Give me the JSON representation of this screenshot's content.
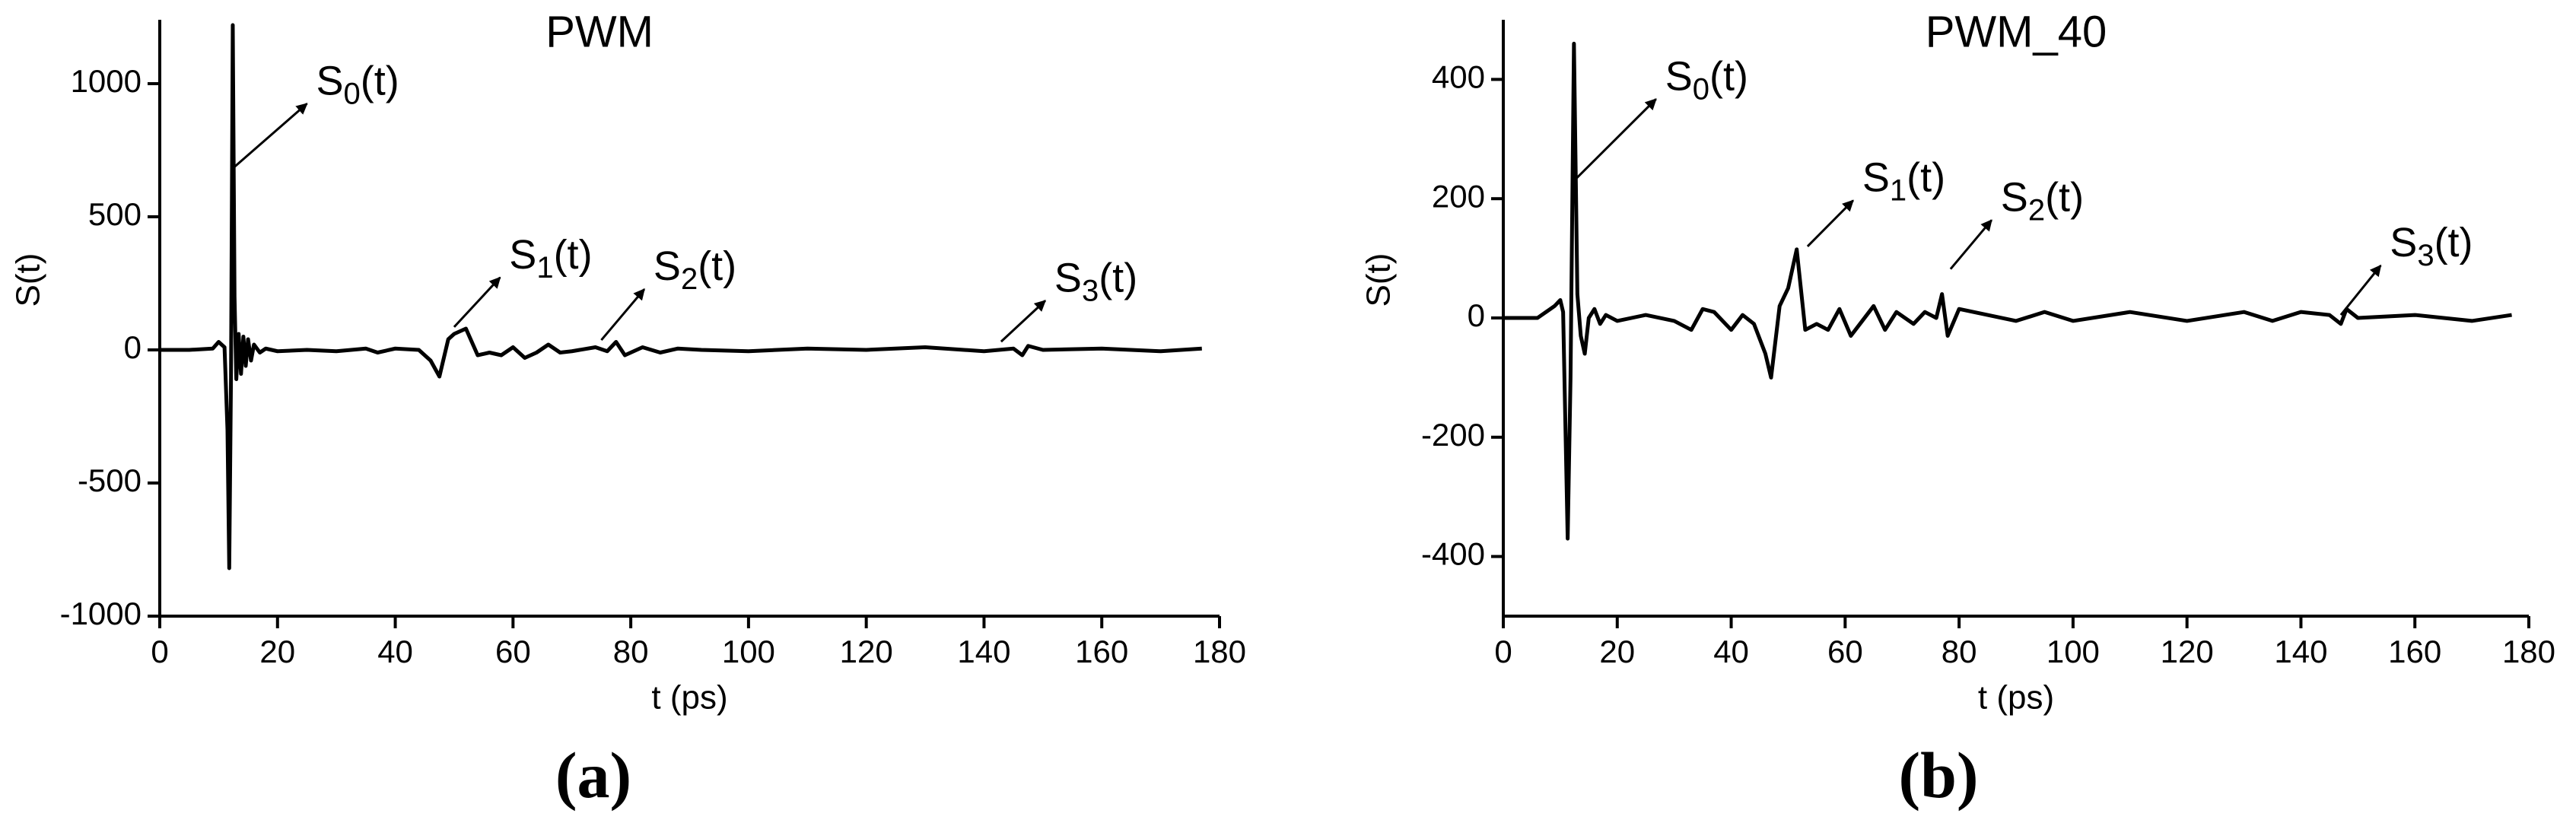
{
  "chart_data": [
    {
      "type": "line",
      "title": "PWM",
      "panel_label": "(a)",
      "xlabel": "t (ps)",
      "ylabel": "S(t)",
      "xlim": [
        0,
        180
      ],
      "xticks": [
        0,
        20,
        40,
        60,
        80,
        100,
        120,
        140,
        160,
        180
      ],
      "ylim": [
        -1000,
        1240
      ],
      "yticks": [
        -1000,
        -500,
        0,
        500,
        1000
      ],
      "x": [
        0,
        5,
        9,
        10,
        11,
        11.5,
        11.8,
        12.1,
        12.4,
        12.7,
        13,
        13.4,
        13.8,
        14.2,
        14.6,
        15,
        15.5,
        16,
        17,
        18,
        20,
        25,
        30,
        35,
        37,
        40,
        44,
        46,
        47.5,
        49,
        50,
        52,
        54,
        56,
        58,
        60,
        62,
        64,
        66,
        68,
        70,
        74,
        76,
        77.5,
        79,
        82,
        85,
        88,
        92,
        100,
        110,
        120,
        130,
        140,
        145,
        146.5,
        147.5,
        150,
        160,
        170,
        177
      ],
      "series": [
        {
          "color": "#000000",
          "values": [
            0,
            0,
            5,
            30,
            10,
            -300,
            -820,
            -100,
            1220,
            200,
            -110,
            60,
            -90,
            50,
            -60,
            40,
            -40,
            20,
            -10,
            5,
            -5,
            0,
            -5,
            5,
            -10,
            5,
            0,
            -40,
            -100,
            40,
            60,
            80,
            -20,
            -10,
            -20,
            10,
            -30,
            -10,
            20,
            -10,
            -5,
            10,
            -5,
            30,
            -20,
            10,
            -10,
            5,
            0,
            -5,
            5,
            0,
            10,
            -5,
            5,
            -20,
            15,
            0,
            5,
            -5,
            5
          ]
        }
      ],
      "annotations": [
        {
          "base": "S",
          "sub": "0",
          "suffix": "(t)",
          "xy": [
            12.3,
            680
          ],
          "xytext": [
            25,
            925
          ]
        },
        {
          "base": "S",
          "sub": "1",
          "suffix": "(t)",
          "xy": [
            50,
            86
          ],
          "xytext": [
            57.8,
            272
          ]
        },
        {
          "base": "S",
          "sub": "2",
          "suffix": "(t)",
          "xy": [
            75,
            37
          ],
          "xytext": [
            82.3,
            228
          ]
        },
        {
          "base": "S",
          "sub": "3",
          "suffix": "(t)",
          "xy": [
            142.9,
            31
          ],
          "xytext": [
            150.4,
            185
          ]
        }
      ]
    },
    {
      "type": "line",
      "title": "PWM_40",
      "panel_label": "(b)",
      "xlabel": "t (ps)",
      "ylabel": "S(t)",
      "xlim": [
        0,
        180
      ],
      "xticks": [
        0,
        20,
        40,
        60,
        80,
        100,
        120,
        140,
        160,
        180
      ],
      "ylim": [
        -500,
        500
      ],
      "yticks": [
        -400,
        -200,
        0,
        200,
        400
      ],
      "x": [
        0,
        6,
        9,
        10,
        10.5,
        11.3,
        11.8,
        12.4,
        13,
        13.6,
        14.3,
        15,
        16,
        17,
        18,
        20,
        25,
        30,
        33,
        35,
        37,
        40,
        42,
        44,
        46,
        47,
        48.5,
        50,
        51.5,
        53,
        55,
        57,
        59,
        61,
        63,
        65,
        67,
        69,
        72,
        74,
        76,
        77,
        78,
        80,
        85,
        90,
        95,
        100,
        110,
        120,
        130,
        135,
        140,
        145,
        147,
        148,
        150,
        160,
        170,
        177
      ],
      "series": [
        {
          "color": "#000000",
          "values": [
            0,
            0,
            20,
            30,
            10,
            -370,
            -100,
            460,
            40,
            -30,
            -60,
            0,
            15,
            -10,
            5,
            -5,
            5,
            -5,
            -20,
            15,
            10,
            -20,
            5,
            -10,
            -60,
            -100,
            20,
            50,
            115,
            -20,
            -10,
            -20,
            15,
            -30,
            -5,
            20,
            -20,
            10,
            -10,
            10,
            0,
            40,
            -30,
            15,
            5,
            -5,
            10,
            -5,
            10,
            -5,
            10,
            -5,
            10,
            5,
            -10,
            15,
            0,
            5,
            -5,
            5
          ]
        }
      ],
      "annotations": [
        {
          "base": "S",
          "sub": "0",
          "suffix": "(t)",
          "xy": [
            12.4,
            230
          ],
          "xytext": [
            26.8,
            367
          ]
        },
        {
          "base": "S",
          "sub": "1",
          "suffix": "(t)",
          "xy": [
            53.4,
            120
          ],
          "xytext": [
            61.4,
            197
          ]
        },
        {
          "base": "S",
          "sub": "2",
          "suffix": "(t)",
          "xy": [
            78.5,
            82
          ],
          "xytext": [
            85.7,
            164
          ]
        },
        {
          "base": "S",
          "sub": "3",
          "suffix": "(t)",
          "xy": [
            147,
            5
          ],
          "xytext": [
            154,
            88
          ]
        }
      ]
    }
  ]
}
